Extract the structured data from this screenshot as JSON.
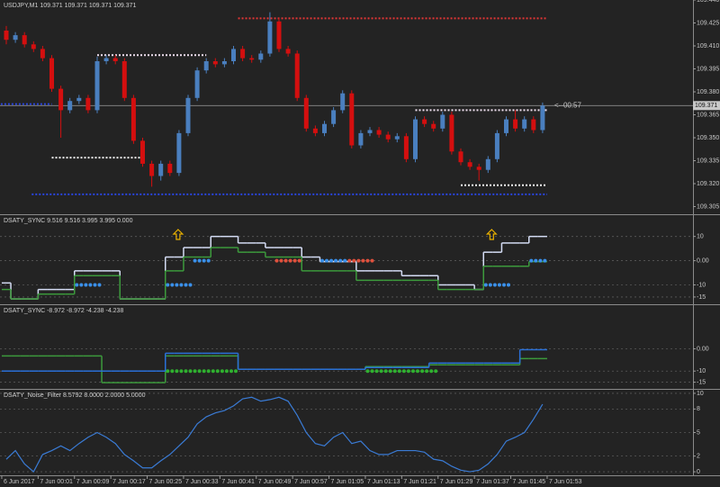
{
  "chart_data": [
    {
      "type": "candlestick",
      "title": "USDJPY,M1 109.371 109.371 109.371 109.371",
      "up_color": "#4a7fbf",
      "down_color": "#d40f0f",
      "open": [
        109.42,
        109.414,
        109.417,
        109.411,
        109.408,
        109.402,
        109.382,
        109.368,
        109.374,
        109.376,
        109.368,
        109.4,
        109.402,
        109.4,
        109.376,
        109.348,
        109.333,
        109.325,
        109.333,
        109.327,
        109.353,
        109.376,
        109.394,
        109.4,
        109.398,
        109.4,
        109.408,
        109.402,
        109.401,
        109.405,
        109.426,
        109.408,
        109.405,
        109.376,
        109.356,
        109.353,
        109.359,
        109.368,
        109.379,
        109.345,
        109.353,
        109.355,
        109.352,
        109.349,
        109.351,
        109.336,
        109.362,
        109.359,
        109.356,
        109.365,
        109.341,
        109.334,
        109.331,
        109.329,
        109.336,
        109.353,
        109.362,
        109.356,
        109.362,
        109.355
      ],
      "high": [
        109.423,
        109.419,
        109.419,
        109.413,
        109.41,
        109.404,
        109.384,
        109.376,
        109.378,
        109.378,
        109.403,
        109.404,
        109.404,
        109.402,
        109.378,
        109.35,
        109.335,
        109.335,
        109.335,
        109.355,
        109.378,
        109.396,
        109.402,
        109.402,
        109.402,
        109.41,
        109.41,
        109.404,
        109.407,
        109.432,
        109.428,
        109.41,
        109.407,
        109.378,
        109.358,
        109.361,
        109.37,
        109.381,
        109.381,
        109.355,
        109.357,
        109.357,
        109.354,
        109.353,
        109.353,
        109.364,
        109.364,
        109.361,
        109.367,
        109.367,
        109.343,
        109.336,
        109.333,
        109.338,
        109.355,
        109.364,
        109.368,
        109.364,
        109.364,
        109.373
      ],
      "low": [
        109.411,
        109.412,
        109.409,
        109.406,
        109.4,
        109.38,
        109.35,
        109.366,
        109.372,
        109.366,
        109.366,
        109.398,
        109.398,
        109.374,
        109.346,
        109.331,
        109.318,
        109.322,
        109.325,
        109.325,
        109.351,
        109.374,
        109.392,
        109.396,
        109.396,
        109.398,
        109.4,
        109.399,
        109.399,
        109.403,
        109.406,
        109.403,
        109.374,
        109.354,
        109.351,
        109.351,
        109.357,
        109.366,
        109.343,
        109.343,
        109.351,
        109.35,
        109.347,
        109.347,
        109.334,
        109.334,
        109.357,
        109.354,
        109.354,
        109.339,
        109.332,
        109.329,
        109.322,
        109.327,
        109.334,
        109.351,
        109.354,
        109.354,
        109.353,
        109.353
      ],
      "close": [
        109.414,
        109.417,
        109.411,
        109.408,
        109.402,
        109.382,
        109.368,
        109.374,
        109.376,
        109.368,
        109.4,
        109.402,
        109.4,
        109.376,
        109.348,
        109.333,
        109.325,
        109.333,
        109.327,
        109.353,
        109.376,
        109.394,
        109.4,
        109.398,
        109.4,
        109.408,
        109.402,
        109.401,
        109.405,
        109.426,
        109.408,
        109.405,
        109.376,
        109.356,
        109.353,
        109.359,
        109.368,
        109.379,
        109.345,
        109.353,
        109.355,
        109.352,
        109.349,
        109.351,
        109.336,
        109.362,
        109.359,
        109.356,
        109.365,
        109.341,
        109.334,
        109.331,
        109.329,
        109.336,
        109.353,
        109.362,
        109.356,
        109.362,
        109.355,
        109.371
      ],
      "levels": [
        {
          "value": 109.428,
          "color": "#e03535",
          "from": 25.5,
          "to": 59.5
        },
        {
          "value": 109.404,
          "color": "#f0e0f0",
          "from": 10,
          "to": 22
        },
        {
          "value": 109.337,
          "color": "#f0f0f0",
          "from": 5,
          "to": 15
        },
        {
          "value": 109.372,
          "color": "#2a45e0",
          "from": -1,
          "to": 5
        },
        {
          "value": 109.368,
          "color": "#f0e0f0",
          "from": 45,
          "to": 59.5
        },
        {
          "value": 109.313,
          "color": "#2a45e0",
          "from": 2.8,
          "to": 59.5
        },
        {
          "value": 109.319,
          "color": "#f0f0f0",
          "from": 50,
          "to": 59.5
        }
      ],
      "current_price": 109.371,
      "countdown": "<--00:57",
      "ylim": [
        109.3,
        109.44
      ],
      "yticks": [
        109.305,
        {
          "value": 109.32,
          "label": "109.320"
        },
        109.335,
        {
          "value": 109.35,
          "label": "109.350"
        },
        109.365,
        {
          "value": 109.38,
          "label": "109.380"
        },
        109.395,
        {
          "value": 109.41,
          "label": "109.410"
        },
        109.425,
        {
          "value": 109.44,
          "label": "109.440"
        }
      ],
      "grid": false
    },
    {
      "type": "step",
      "title": "DSATY_SYNC 9.516 9.516 3.995 3.995 0.000",
      "series": [
        {
          "color": "#d4dcf4",
          "values": [
            -9.2,
            -15.8,
            -15.8,
            -15.8,
            -11.9,
            -11.9,
            -11.9,
            -11.9,
            -4.2,
            -4.2,
            -4.2,
            -4.2,
            -4.2,
            -15.8,
            -15.8,
            -15.8,
            -15.8,
            -15.8,
            1.5,
            1.5,
            5.4,
            5.4,
            5.4,
            10,
            10,
            10,
            7.3,
            7.3,
            7.3,
            5.4,
            5.4,
            5.4,
            5.4,
            1.5,
            1.5,
            -0.4,
            -0.4,
            -0.4,
            -0.4,
            -4.2,
            -4.2,
            -4.2,
            -4.2,
            -4.2,
            -6.2,
            -6.2,
            -6.2,
            -6.2,
            -10,
            -10,
            -10,
            -10,
            -11.9,
            3.5,
            3.5,
            7.3,
            7.3,
            7.3,
            10,
            10
          ]
        },
        {
          "color": "#3c9a3c",
          "values": [
            -11.9,
            -15.8,
            -15.8,
            -15.8,
            -13.8,
            -13.8,
            -13.8,
            -13.8,
            -6.2,
            -6.2,
            -6.2,
            -6.2,
            -6.2,
            -15.8,
            -15.8,
            -15.8,
            -15.8,
            -15.8,
            -4.2,
            -4.2,
            1.5,
            1.5,
            1.5,
            5.4,
            5.4,
            5.4,
            3.5,
            3.5,
            3.5,
            1.5,
            1.5,
            1.5,
            1.5,
            -4.2,
            -4.2,
            -4.2,
            -4.2,
            -4.2,
            -4.2,
            -8.1,
            -8.1,
            -8.1,
            -8.1,
            -8.1,
            -8.1,
            -8.1,
            -8.1,
            -8.1,
            -11.9,
            -11.9,
            -11.9,
            -11.9,
            -11.9,
            -2.3,
            -2.3,
            -2.3,
            -2.3,
            -2.3,
            -0.4,
            -0.4
          ]
        }
      ],
      "dots": [
        {
          "color": "#3a90ea",
          "values": [
            null,
            null,
            null,
            null,
            null,
            null,
            null,
            null,
            -10,
            -10,
            -10,
            null,
            null,
            null,
            null,
            null,
            null,
            null,
            -10,
            -10,
            -10,
            0,
            0,
            null,
            null,
            null,
            null,
            null,
            null,
            null,
            null,
            null,
            null,
            null,
            null,
            0,
            0,
            0,
            null,
            null,
            null,
            null,
            null,
            null,
            null,
            null,
            null,
            null,
            null,
            null,
            null,
            null,
            null,
            -10,
            -10,
            -10,
            null,
            null,
            0,
            0
          ]
        },
        {
          "color": "#e0503c",
          "values": [
            null,
            null,
            null,
            null,
            null,
            null,
            null,
            null,
            null,
            null,
            null,
            null,
            null,
            null,
            null,
            null,
            null,
            null,
            null,
            null,
            null,
            null,
            null,
            null,
            null,
            null,
            null,
            null,
            null,
            null,
            0,
            0,
            0,
            null,
            null,
            null,
            null,
            null,
            0,
            0,
            0,
            null,
            null,
            null,
            null,
            null,
            null,
            null,
            null,
            null,
            null,
            null,
            null,
            null,
            null,
            null,
            null,
            null,
            null,
            null
          ]
        }
      ],
      "arrows": [
        18.9,
        53.4
      ],
      "arrow_color": "#e8b000",
      "ylim": [
        -18,
        18.8
      ],
      "yticks": [
        10,
        {
          "value": 0,
          "label": "0.00"
        },
        -10,
        -15
      ],
      "grid": true
    },
    {
      "type": "step",
      "title": "DSATY_SYNC -8.972 -8.972 -4.238 -4.238",
      "series": [
        {
          "color": "#3c9a3c",
          "values": [
            -3.2,
            -3.2,
            -3.2,
            -3.2,
            -3.2,
            -3.2,
            -3.2,
            -3.2,
            -3.2,
            -3.2,
            -3.2,
            -15.2,
            -15.2,
            -15.2,
            -15.2,
            -15.2,
            -15.2,
            -15.2,
            -3.2,
            -3.2,
            -3.2,
            -3.2,
            -3.2,
            -3.2,
            -3.2,
            -3.2,
            -9.2,
            -9.2,
            -9.2,
            -9.2,
            -9.2,
            -9.2,
            -9.2,
            -9.2,
            -9.2,
            -9.2,
            -9.2,
            -9.2,
            -9.2,
            -9.2,
            -8,
            -8,
            -8,
            -8,
            -8,
            -8,
            -8,
            -7.2,
            -7.2,
            -7.2,
            -7.2,
            -7.2,
            -7.2,
            -7.2,
            -7.2,
            -7.2,
            -7.2,
            -4.4,
            -4.4,
            -4.4
          ]
        },
        {
          "color": "#2a70d8",
          "values": [
            -10,
            -10,
            -10,
            -10,
            -10,
            -10,
            -10,
            -10,
            -10,
            -10,
            -10,
            -10,
            -10,
            -10,
            -10,
            -10,
            -10,
            -10,
            -2,
            -2,
            -2,
            -2,
            -2,
            -2,
            -2,
            -2,
            -9.2,
            -9.2,
            -9.2,
            -9.2,
            -9.2,
            -9.2,
            -9.2,
            -9.2,
            -9.2,
            -9.2,
            -9.2,
            -9.2,
            -9.2,
            -9.2,
            -8.4,
            -8.4,
            -8.4,
            -8.4,
            -8.4,
            -8.4,
            -8.4,
            -6.4,
            -6.4,
            -6.4,
            -6.4,
            -6.4,
            -6.4,
            -6.4,
            -6.4,
            -6.4,
            -6.4,
            -0.4,
            -0.4,
            -0.4
          ]
        }
      ],
      "dots": [
        {
          "color": "#2fb02f",
          "values": [
            null,
            null,
            null,
            null,
            null,
            null,
            null,
            null,
            null,
            null,
            null,
            null,
            null,
            null,
            null,
            null,
            null,
            null,
            -10,
            -10,
            -10,
            -10,
            -10,
            -10,
            -10,
            -10,
            null,
            null,
            null,
            null,
            null,
            null,
            null,
            null,
            null,
            null,
            null,
            null,
            null,
            null,
            -10,
            -10,
            -10,
            -10,
            -10,
            -10,
            -10,
            -10,
            null,
            null,
            null,
            null,
            null,
            null,
            null,
            null,
            null,
            null,
            null,
            null
          ]
        }
      ],
      "ylim": [
        -18,
        19.6
      ],
      "yticks": [
        {
          "value": 0,
          "label": "0.00"
        },
        -10,
        -15
      ],
      "grid": true
    },
    {
      "type": "line",
      "title": "DSATY_Noise_Filter 8.5792 8.0000 2.0000 5.0000",
      "series": [
        {
          "color": "#3a7bd5",
          "values": [
            1.6,
            2.7,
            1.0,
            0.0,
            2.2,
            2.7,
            3.3,
            2.7,
            3.6,
            4.4,
            5.0,
            4.4,
            3.6,
            2.2,
            1.4,
            0.5,
            0.5,
            1.4,
            2.2,
            3.3,
            4.4,
            6.1,
            7.0,
            7.5,
            7.8,
            8.4,
            9.3,
            9.5,
            9.0,
            9.2,
            9.5,
            9.0,
            7.2,
            5.0,
            3.6,
            3.3,
            4.4,
            5.0,
            3.6,
            3.9,
            2.7,
            2.2,
            2.2,
            2.7,
            2.7,
            2.7,
            2.5,
            1.6,
            1.4,
            0.7,
            0.2,
            0.0,
            0.2,
            1.0,
            2.2,
            3.9,
            4.4,
            5.0,
            6.7,
            8.6
          ]
        }
      ],
      "ylim": [
        -0.45,
        10.45
      ],
      "yticks": [
        10,
        8,
        5,
        2,
        0
      ],
      "grid": true,
      "xticks": [
        {
          "value": -0.5,
          "label": "6 Jun 2017"
        },
        {
          "value": 3.5,
          "label": "7 Jun 00:01"
        },
        {
          "value": 7.5,
          "label": "7 Jun 00:09"
        },
        {
          "value": 11.5,
          "label": "7 Jun 00:17"
        },
        {
          "value": 15.5,
          "label": "7 Jun 00:25"
        },
        {
          "value": 19.5,
          "label": "7 Jun 00:33"
        },
        {
          "value": 23.5,
          "label": "7 Jun 00:41"
        },
        {
          "value": 27.5,
          "label": "7 Jun 00:49"
        },
        {
          "value": 31.5,
          "label": "7 Jun 00:57"
        },
        {
          "value": 35.5,
          "label": "7 Jun 01:05"
        },
        {
          "value": 39.5,
          "label": "7 Jun 01:13"
        },
        {
          "value": 43.5,
          "label": "7 Jun 01:21"
        },
        {
          "value": 47.5,
          "label": "7 Jun 01:29"
        },
        {
          "value": 51.5,
          "label": "7 Jun 01:37"
        },
        {
          "value": 55.5,
          "label": "7 Jun 01:45"
        },
        {
          "value": 59.5,
          "label": "7 Jun 01:53"
        }
      ]
    }
  ]
}
